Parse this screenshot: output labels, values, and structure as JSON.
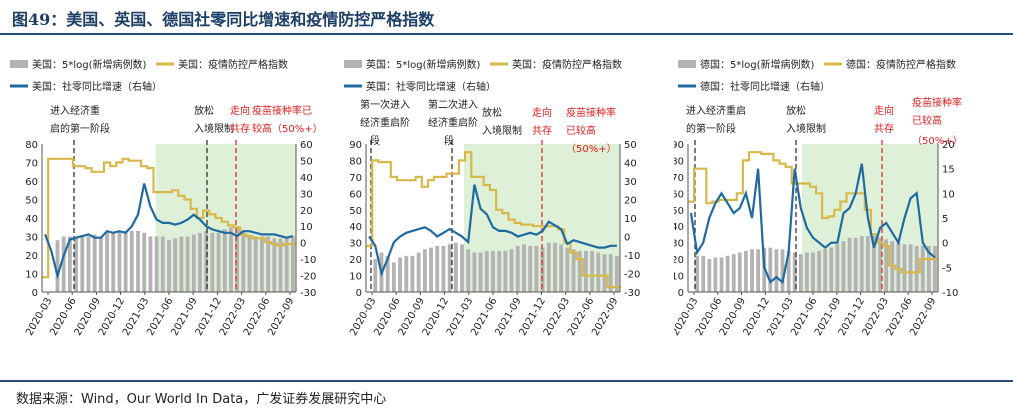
{
  "figure_title": "图49：美国、英国、德国社零同比增速和疫情防控严格指数",
  "source_note": "数据来源：Wind，Our World In Data，广发证券发展研究中心",
  "colors": {
    "bar": "#b3b3b3",
    "strictness": "#d9b84a",
    "retail": "#1f6aa0",
    "shade": "#dff0d8",
    "red": "#e02020",
    "black": "#222222"
  },
  "chart_data": [
    {
      "type": "bar",
      "legend": [
        "美国：5*log(新增病例数)",
        "美国：疫情防控严格指数",
        "美国：社零同比增速（右轴）"
      ],
      "left_ylim": [
        0,
        80
      ],
      "left_ticks": [
        0,
        10,
        20,
        30,
        40,
        50,
        60,
        70,
        80
      ],
      "right_ylim": [
        -30,
        60
      ],
      "right_ticks": [
        -30,
        -20,
        -10,
        0,
        10,
        20,
        30,
        40,
        50,
        60
      ],
      "x_tick_labels": [
        "2020-03",
        "2020-06",
        "2020-09",
        "2020-12",
        "2021-03",
        "2021-06",
        "2021-09",
        "2021-12",
        "2022-03",
        "2022-06",
        "2022-09"
      ],
      "series": [
        {
          "name": "美国：5*log(新增病例数)",
          "axis": "left",
          "values": [
            0,
            0,
            28,
            30,
            30,
            30,
            30,
            30,
            31,
            30,
            32,
            32,
            33,
            33,
            33,
            33,
            32,
            30,
            30,
            30,
            28,
            29,
            30,
            30,
            31,
            32,
            33,
            32,
            32,
            34,
            35,
            35,
            33,
            31,
            30,
            30,
            30,
            29,
            29,
            29,
            30
          ]
        },
        {
          "name": "美国：疫情防控严格指数",
          "axis": "left",
          "values": [
            8,
            72,
            72,
            72,
            72,
            68,
            68,
            67,
            65,
            65,
            70,
            68,
            70,
            72,
            71,
            71,
            68,
            67,
            54,
            54,
            54,
            55,
            52,
            50,
            45,
            40,
            44,
            42,
            40,
            38,
            36,
            35,
            31,
            30,
            29,
            29,
            27,
            26,
            25,
            26,
            26
          ]
        },
        {
          "name": "美国：社零同比增速（右轴）",
          "axis": "right",
          "values": [
            5,
            -5,
            -20,
            -8,
            2,
            3,
            4,
            5,
            3,
            3,
            7,
            6,
            7,
            6,
            10,
            17,
            36,
            22,
            14,
            12,
            12,
            11,
            12,
            14,
            17,
            14,
            10,
            8,
            7,
            6,
            6,
            4,
            7,
            7,
            6,
            5,
            5,
            5,
            4,
            3,
            4
          ]
        }
      ],
      "annotations": [
        "进入经济重启的第一阶段",
        "放松入境限制",
        "走向共存",
        "疫苗接种率已较高（50%+）"
      ]
    },
    {
      "type": "bar",
      "legend": [
        "英国：5*log(新增病例数)",
        "英国：疫情防控严格指数",
        "英国：社零同比增速（右轴）"
      ],
      "left_ylim": [
        0,
        90
      ],
      "left_ticks": [
        0,
        10,
        20,
        30,
        40,
        50,
        60,
        70,
        80,
        90
      ],
      "right_ylim": [
        -30,
        50
      ],
      "right_ticks": [
        -30,
        -20,
        -10,
        0,
        10,
        20,
        30,
        40,
        50
      ],
      "x_tick_labels": [
        "2020-03",
        "2020-06",
        "2020-09",
        "2020-12",
        "2021-03",
        "2021-06",
        "2021-09",
        "2021-12",
        "2022-03",
        "2022-06",
        "2022-09"
      ],
      "series": [
        {
          "name": "英国：5*log(新增病例数)",
          "axis": "left",
          "values": [
            0,
            20,
            24,
            22,
            18,
            21,
            22,
            22,
            24,
            26,
            27,
            28,
            28,
            29,
            30,
            29,
            26,
            24,
            24,
            25,
            25,
            25,
            25,
            26,
            28,
            29,
            28,
            28,
            27,
            30,
            30,
            29,
            27,
            26,
            25,
            25,
            25,
            24,
            23,
            23,
            22
          ]
        },
        {
          "name": "英国：疫情防控严格指数",
          "axis": "left",
          "values": [
            28,
            80,
            79,
            79,
            70,
            68,
            68,
            68,
            70,
            64,
            68,
            70,
            70,
            72,
            72,
            80,
            85,
            70,
            70,
            65,
            62,
            50,
            48,
            44,
            42,
            41,
            41,
            40,
            40,
            40,
            40,
            38,
            30,
            24,
            20,
            10,
            10,
            10,
            10,
            3,
            3
          ]
        },
        {
          "name": "英国：社零同比增速（右轴）",
          "axis": "right",
          "values": [
            0,
            -5,
            -20,
            -12,
            -3,
            0,
            2,
            3,
            4,
            5,
            3,
            0,
            2,
            4,
            2,
            0,
            -3,
            28,
            15,
            12,
            5,
            3,
            3,
            2,
            0,
            1,
            2,
            1,
            3,
            8,
            6,
            4,
            -4,
            -2,
            -3,
            -4,
            -5,
            -6,
            -6,
            -5,
            -5
          ]
        }
      ],
      "annotations": [
        "第一次进入经济重启阶段",
        "第二次进入经济重启阶段",
        "放松入境限制",
        "走向共存",
        "疫苗接种率已较高（50%+）"
      ]
    },
    {
      "type": "bar",
      "legend": [
        "德国：5*log(新增病例数)",
        "德国：疫情防控严格指数",
        "德国：社零同比增速（右轴）"
      ],
      "left_ylim": [
        0,
        90
      ],
      "left_ticks": [
        0,
        10,
        20,
        30,
        40,
        50,
        60,
        70,
        80,
        90
      ],
      "right_ylim": [
        -10,
        20
      ],
      "right_ticks": [
        -10,
        -5,
        0,
        5,
        10,
        15,
        20
      ],
      "x_tick_labels": [
        "2020-03",
        "2020-06",
        "2020-09",
        "2020-12",
        "2021-03",
        "2021-06",
        "2021-09",
        "2021-12",
        "2022-03",
        "2022-06",
        "2022-09"
      ],
      "series": [
        {
          "name": "德国：5*log(新增病例数)",
          "axis": "left",
          "values": [
            0,
            22,
            22,
            20,
            21,
            21,
            22,
            23,
            24,
            25,
            26,
            26,
            27,
            27,
            26,
            26,
            25,
            24,
            23,
            24,
            24,
            25,
            26,
            27,
            29,
            31,
            33,
            33,
            34,
            34,
            34,
            33,
            32,
            31,
            30,
            29,
            29,
            28,
            28,
            28,
            28
          ]
        },
        {
          "name": "德国：疫情防控严格指数",
          "axis": "left",
          "values": [
            55,
            75,
            75,
            54,
            55,
            56,
            56,
            56,
            60,
            80,
            85,
            85,
            84,
            84,
            80,
            78,
            76,
            66,
            66,
            66,
            64,
            60,
            45,
            46,
            50,
            55,
            60,
            60,
            60,
            50,
            35,
            30,
            28,
            16,
            14,
            12,
            12,
            12,
            20,
            20,
            20
          ]
        },
        {
          "name": "德国：社零同比增速（右轴）",
          "axis": "right",
          "values": [
            6,
            -2,
            0,
            5,
            8,
            10,
            8,
            6,
            7,
            10,
            5,
            15,
            -5,
            -8,
            -7,
            -8,
            -2,
            15,
            7,
            3,
            1,
            0,
            -1,
            0,
            0,
            6,
            7,
            10,
            16,
            5,
            -1,
            3,
            4,
            2,
            0,
            5,
            9,
            10,
            0,
            -2,
            -3
          ]
        }
      ],
      "annotations": [
        "进入经济重启的第一阶段",
        "放松入境限制",
        "走向共存",
        "疫苗接种率已较高（50%+）"
      ]
    }
  ]
}
